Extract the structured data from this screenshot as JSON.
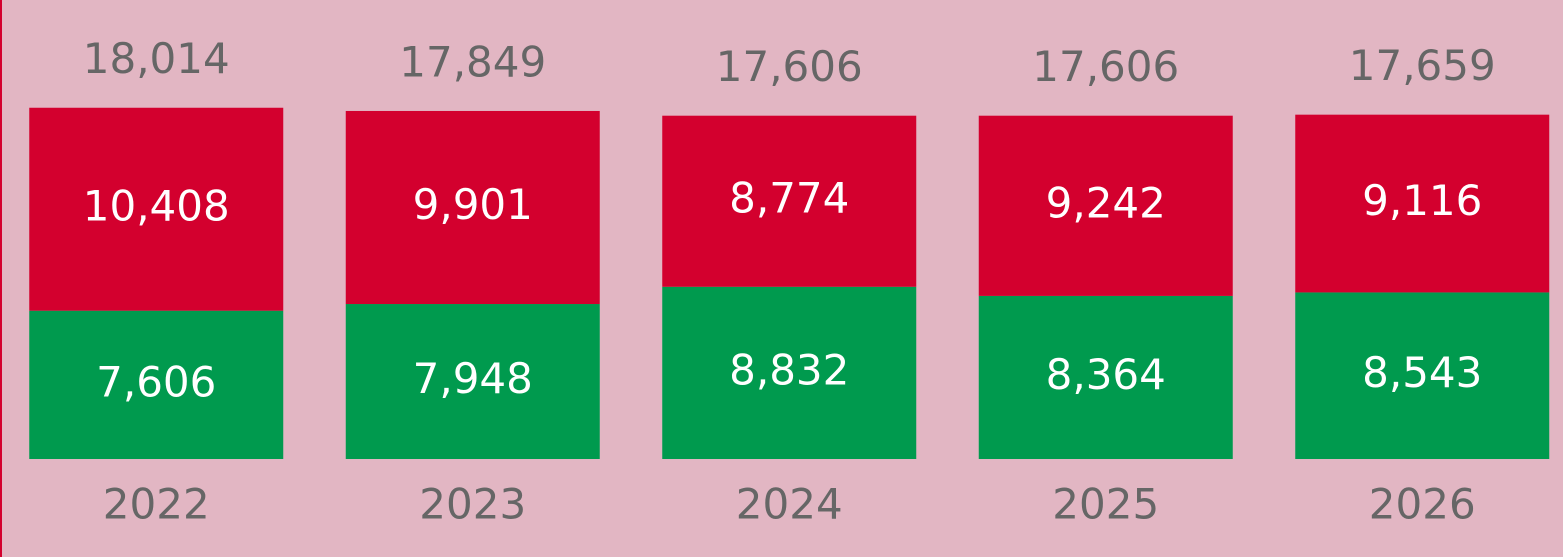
{
  "chart_data": {
    "type": "stacked_bar",
    "categories": [
      "2022",
      "2023",
      "2024",
      "2025",
      "2026"
    ],
    "series": [
      {
        "name": null,
        "color": "#009a4e",
        "values": [
          7606,
          7948,
          8832,
          8364,
          8543
        ],
        "value_labels": [
          "7,606",
          "7,948",
          "8,832",
          "8,364",
          "8,543"
        ]
      },
      {
        "name": null,
        "color": "#d3002e",
        "values": [
          10408,
          9901,
          8774,
          9242,
          9116
        ],
        "value_labels": [
          "10,408",
          "9,901",
          "8,774",
          "9,242",
          "9,116"
        ]
      }
    ],
    "totals": {
      "values": [
        18014,
        17849,
        17606,
        17606,
        17659
      ],
      "value_labels": [
        "18,014",
        "17,849",
        "17,606",
        "17,606",
        "17,659"
      ]
    },
    "ylim": [
      0,
      23540
    ]
  }
}
